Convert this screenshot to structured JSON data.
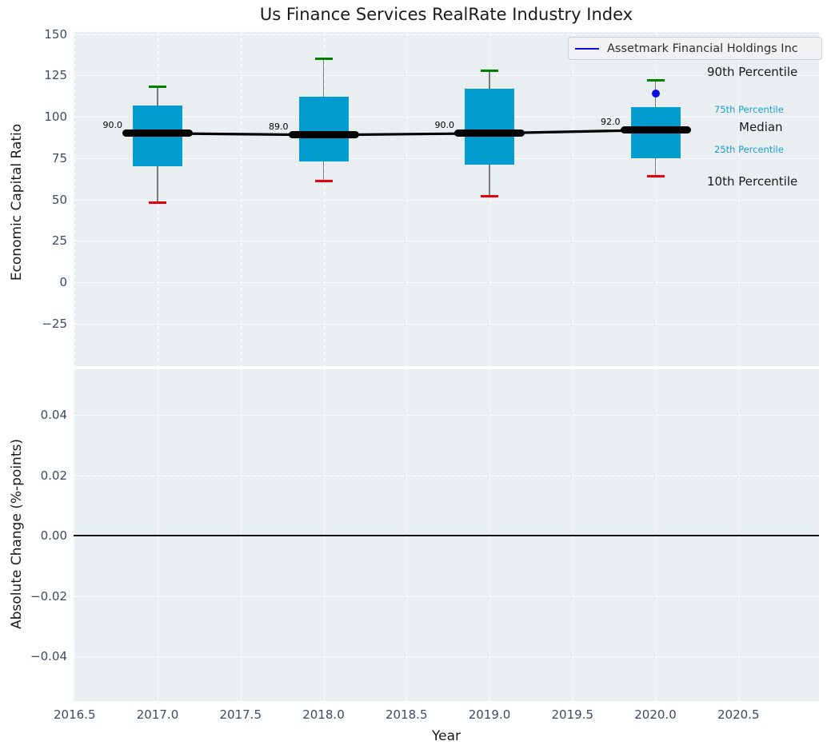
{
  "title": "Us Finance Services RealRate Industry Index",
  "legend": {
    "label": "Assetmark Financial Holdings Inc"
  },
  "annotations": {
    "p90": "90th Percentile",
    "p75": "75th Percentile",
    "median": "Median",
    "p25": "25th Percentile",
    "p10": "10th Percentile"
  },
  "x_axis": {
    "label": "Year",
    "ticks": [
      "2016.5",
      "2017.0",
      "2017.5",
      "2018.0",
      "2018.5",
      "2019.0",
      "2019.5",
      "2020.0",
      "2020.5"
    ],
    "values": [
      2016.5,
      2017.0,
      2017.5,
      2018.0,
      2018.5,
      2019.0,
      2019.5,
      2020.0,
      2020.5
    ]
  },
  "colors": {
    "box_fill": "#049bce",
    "annotation_blue": "#1b9ed3",
    "cap_90th": "#008000",
    "cap_10th": "#e8000b",
    "company_blue": "#0d0de0",
    "whisker": "#7a7a7a",
    "median_line": "#000000",
    "axes_background": "#e9eef0",
    "grid": "#ffffff",
    "tick_text": "#3b4c63"
  },
  "chart_data": [
    {
      "type": "boxplot",
      "title": "Us Finance Services RealRate Industry Index",
      "xlabel": "Year",
      "ylabel": "Economic Capital Ratio",
      "ylim": [
        -50,
        151
      ],
      "yticks": [
        "150",
        "125",
        "100",
        "75",
        "50",
        "25",
        "0",
        "−25"
      ],
      "ytick_values": [
        150,
        125,
        100,
        75,
        50,
        25,
        0,
        -25
      ],
      "grid": true,
      "legend_position": "upper right",
      "categories": [
        2017,
        2018,
        2019,
        2020
      ],
      "median_labels": [
        "90.0",
        "89.0",
        "90.0",
        "92.0"
      ],
      "boxes": [
        {
          "year": 2017,
          "p10": 48,
          "p25": 70,
          "median": 90,
          "p75": 107,
          "p90": 118
        },
        {
          "year": 2018,
          "p10": 61,
          "p25": 73,
          "median": 89,
          "p75": 112,
          "p90": 135
        },
        {
          "year": 2019,
          "p10": 52,
          "p25": 71,
          "median": 90,
          "p75": 117,
          "p90": 128
        },
        {
          "year": 2020,
          "p10": 64,
          "p25": 75,
          "median": 92,
          "p75": 106,
          "p90": 122
        }
      ],
      "median_series": {
        "name": "Median",
        "x": [
          2017,
          2018,
          2019,
          2020
        ],
        "values": [
          90,
          89,
          90,
          92
        ]
      },
      "company_point": {
        "name": "Assetmark Financial Holdings Inc",
        "year": 2020,
        "value": 114
      }
    },
    {
      "type": "line",
      "xlabel": "Year",
      "ylabel": "Absolute Change (%-points)",
      "ylim": [
        -0.055,
        0.055
      ],
      "yticks": [
        "0.04",
        "0.02",
        "0.00",
        "−0.02",
        "−0.04"
      ],
      "ytick_values": [
        0.04,
        0.02,
        0.0,
        -0.02,
        -0.04
      ],
      "grid": true,
      "series": [
        {
          "name": "zero-change-line",
          "x": [
            2016.5,
            2020.988
          ],
          "values": [
            0,
            0
          ]
        }
      ],
      "y_value": 0
    }
  ]
}
